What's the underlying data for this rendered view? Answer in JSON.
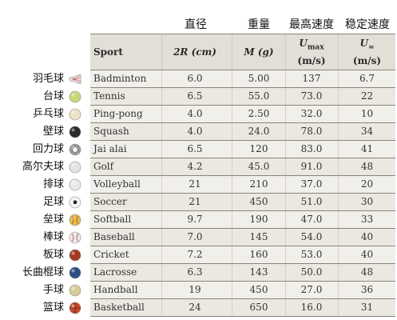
{
  "chinese_headers": [
    "直径",
    "重量",
    "最高速度",
    "稳定速度"
  ],
  "table": {
    "columns": {
      "sport": "Sport",
      "diameter": "2R (cm)",
      "mass": "M (g)",
      "max_speed": {
        "symbol": "U",
        "subscript": "max",
        "unit": "(m/s)"
      },
      "terminal_speed": {
        "symbol": "U",
        "subscript": "∞",
        "unit": "(m/s)"
      }
    },
    "rows": [
      {
        "cn": "羽毛球",
        "sport": "Badminton",
        "diameter": "6.0",
        "mass": "5.00",
        "max_speed": "137",
        "terminal_speed": "6.7",
        "icon": "shuttlecock-icon",
        "color": "#d8d8d8"
      },
      {
        "cn": "台球",
        "sport": "Tennis",
        "diameter": "6.5",
        "mass": "55.0",
        "max_speed": "73.0",
        "terminal_speed": "22",
        "icon": "tennis-ball-icon",
        "color": "#c9d77a"
      },
      {
        "cn": "乒乓球",
        "sport": "Ping-pong",
        "diameter": "4.0",
        "mass": "2.50",
        "max_speed": "32.0",
        "terminal_speed": "10",
        "icon": "ping-pong-ball-icon",
        "color": "#efe2c8"
      },
      {
        "cn": "壁球",
        "sport": "Squash",
        "diameter": "4.0",
        "mass": "24.0",
        "max_speed": "78.0",
        "terminal_speed": "34",
        "icon": "squash-ball-icon",
        "color": "#2b2b2b"
      },
      {
        "cn": "回力球",
        "sport": "Jai alai",
        "diameter": "6.5",
        "mass": "120",
        "max_speed": "83.0",
        "terminal_speed": "41",
        "icon": "jai-alai-ball-icon",
        "color": "#9a9a9a"
      },
      {
        "cn": "高尔夫球",
        "sport": "Golf",
        "diameter": "4.2",
        "mass": "45.0",
        "max_speed": "91.0",
        "terminal_speed": "48",
        "icon": "golf-ball-icon",
        "color": "#e4e4e4"
      },
      {
        "cn": "排球",
        "sport": "Volleyball",
        "diameter": "21",
        "mass": "210",
        "max_speed": "37.0",
        "terminal_speed": "20",
        "icon": "volleyball-icon",
        "color": "#e8eaee"
      },
      {
        "cn": "足球",
        "sport": "Soccer",
        "diameter": "21",
        "mass": "450",
        "max_speed": "51.0",
        "terminal_speed": "30",
        "icon": "soccer-ball-icon",
        "color": "#f4f4f4"
      },
      {
        "cn": "垒球",
        "sport": "Softball",
        "diameter": "9.7",
        "mass": "190",
        "max_speed": "47.0",
        "terminal_speed": "33",
        "icon": "softball-icon",
        "color": "#e0c247"
      },
      {
        "cn": "棒球",
        "sport": "Baseball",
        "diameter": "7.0",
        "mass": "145",
        "max_speed": "54.0",
        "terminal_speed": "40",
        "icon": "baseball-icon",
        "color": "#ececec"
      },
      {
        "cn": "板球",
        "sport": "Cricket",
        "diameter": "7.2",
        "mass": "160",
        "max_speed": "53.0",
        "terminal_speed": "40",
        "icon": "cricket-ball-icon",
        "color": "#a33a22"
      },
      {
        "cn": "长曲棍球",
        "sport": "Lacrosse",
        "diameter": "6.3",
        "mass": "143",
        "max_speed": "50.0",
        "terminal_speed": "48",
        "icon": "lacrosse-ball-icon",
        "color": "#2c4f86"
      },
      {
        "cn": "手球",
        "sport": "Handball",
        "diameter": "19",
        "mass": "450",
        "max_speed": "27.0",
        "terminal_speed": "36",
        "icon": "handball-icon",
        "color": "#d8cc9a"
      },
      {
        "cn": "篮球",
        "sport": "Basketball",
        "diameter": "24",
        "mass": "650",
        "max_speed": "16.0",
        "terminal_speed": "31",
        "icon": "basketball-icon",
        "color": "#c8492a"
      }
    ]
  }
}
